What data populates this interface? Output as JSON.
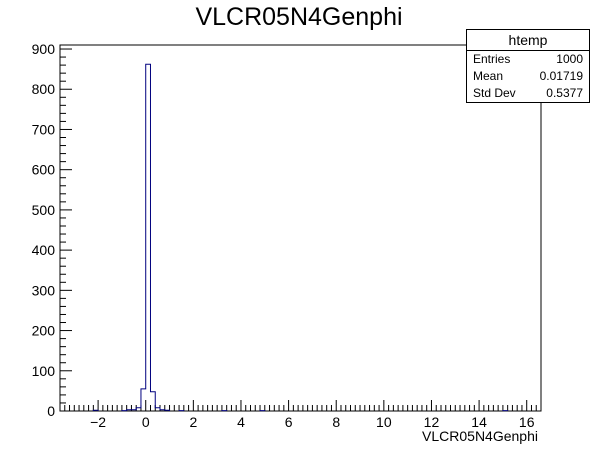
{
  "title": "VLCR05N4Genphi",
  "stats": {
    "name": "htemp",
    "rows": [
      {
        "label": "Entries",
        "value": "1000"
      },
      {
        "label": "Mean",
        "value": "0.01719"
      },
      {
        "label": "Std Dev",
        "value": "0.5377"
      }
    ]
  },
  "colors": {
    "line": "#00007f",
    "axis": "#000000"
  },
  "chart_data": {
    "type": "bar",
    "title": "VLCR05N4Genphi",
    "xlabel": "VLCR05N4Genphi",
    "ylabel": "",
    "xlim": [
      -3.6,
      16.6
    ],
    "ylim": [
      0,
      910
    ],
    "x_ticks": [
      -2,
      0,
      2,
      4,
      6,
      8,
      10,
      12,
      14,
      16
    ],
    "x_tick_labels": [
      "−2",
      "0",
      "2",
      "4",
      "6",
      "8",
      "10",
      "12",
      "14",
      "16"
    ],
    "y_ticks": [
      0,
      100,
      200,
      300,
      400,
      500,
      600,
      700,
      800,
      900
    ],
    "y_tick_labels": [
      "0",
      "100",
      "200",
      "300",
      "400",
      "500",
      "600",
      "700",
      "800",
      "900"
    ],
    "bin_width": 0.2,
    "bins": [
      {
        "x0": -2.2,
        "value": 2
      },
      {
        "x0": -1.0,
        "value": 1
      },
      {
        "x0": -0.8,
        "value": 3
      },
      {
        "x0": -0.6,
        "value": 3
      },
      {
        "x0": -0.4,
        "value": 8
      },
      {
        "x0": -0.2,
        "value": 55
      },
      {
        "x0": 0.0,
        "value": 862
      },
      {
        "x0": 0.2,
        "value": 48
      },
      {
        "x0": 0.4,
        "value": 8
      },
      {
        "x0": 0.6,
        "value": 3
      },
      {
        "x0": 0.8,
        "value": 2
      },
      {
        "x0": 1.4,
        "value": 1
      },
      {
        "x0": 3.2,
        "value": 1
      },
      {
        "x0": 4.8,
        "value": 1
      },
      {
        "x0": 15.0,
        "value": 1
      }
    ]
  }
}
